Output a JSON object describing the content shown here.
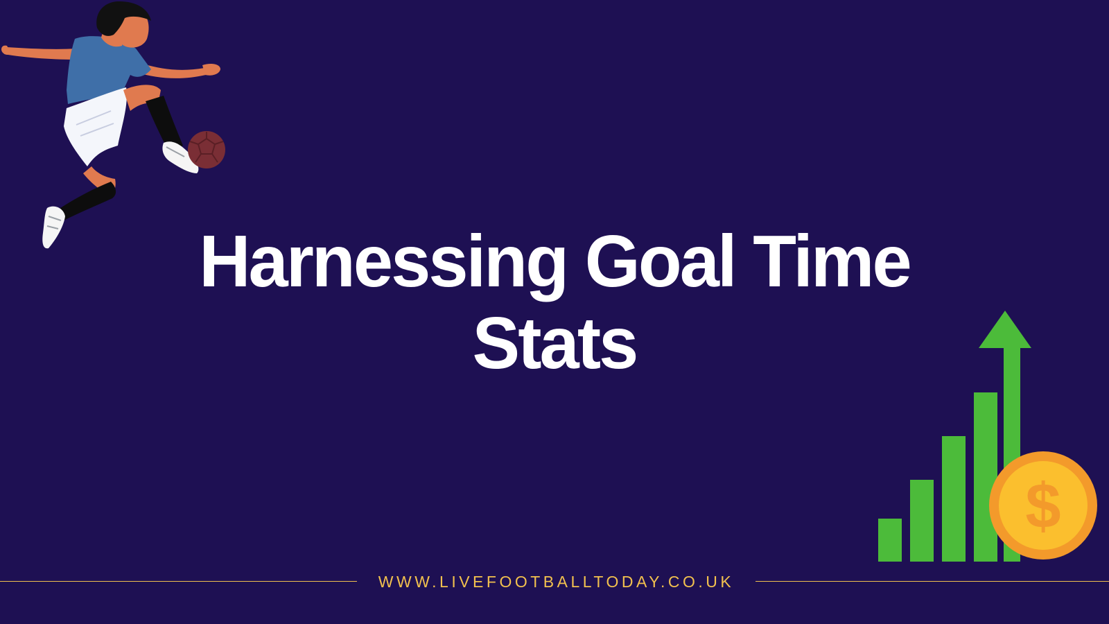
{
  "colors": {
    "background": "#1e1053",
    "title": "#ffffff",
    "accent": "#f2c14e",
    "growth_green": "#4cbb3a",
    "coin_orange": "#f39a2b",
    "coin_gold": "#fbbf2e",
    "jersey_blue": "#3f6fa8",
    "skin": "#e07a4f",
    "ball": "#7a2e35"
  },
  "heading": {
    "line1": "Harnessing Goal Time",
    "line2": "Stats"
  },
  "footer": {
    "url": "WWW.LIVEFOOTBALLTODAY.CO.UK"
  },
  "graphics": {
    "player_icon": "footballer-kicking-icon",
    "growth_icon": "growth-chart-icon",
    "coin_icon": "dollar-coin-icon",
    "coin_symbol": "$"
  }
}
